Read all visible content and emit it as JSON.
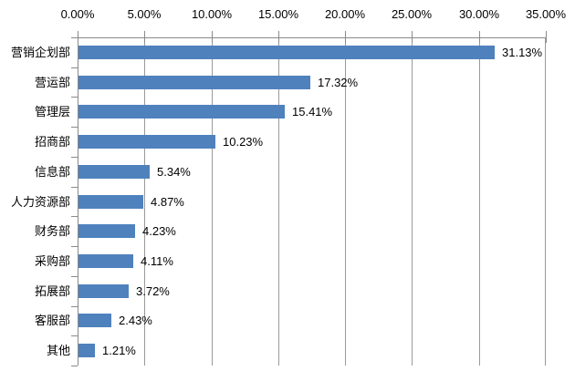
{
  "chart_data": {
    "type": "bar",
    "orientation": "horizontal",
    "title": "",
    "xlabel": "",
    "ylabel": "",
    "legend": false,
    "grid": true,
    "axis_position": "top",
    "categories": [
      "营销企划部",
      "营运部",
      "管理层",
      "招商部",
      "信息部",
      "人力资源部",
      "财务部",
      "采购部",
      "拓展部",
      "客服部",
      "其他"
    ],
    "values": [
      31.13,
      17.32,
      15.41,
      10.23,
      5.34,
      4.87,
      4.23,
      4.11,
      3.72,
      2.43,
      1.21
    ],
    "data_labels": [
      "31.13%",
      "17.32%",
      "15.41%",
      "10.23%",
      "5.34%",
      "4.87%",
      "4.23%",
      "4.11%",
      "3.72%",
      "2.43%",
      "1.21%"
    ],
    "x_axis": {
      "min": 0,
      "max": 35,
      "step": 5,
      "tick_labels": [
        "0.00%",
        "5.00%",
        "10.00%",
        "15.00%",
        "20.00%",
        "25.00%",
        "30.00%",
        "35.00%"
      ]
    },
    "colors": {
      "bar": "#4F81BD",
      "gridline": "#9a9a9a",
      "axis": "#8a8a8a",
      "text": "#000000",
      "background": "#FFFFFF"
    }
  }
}
